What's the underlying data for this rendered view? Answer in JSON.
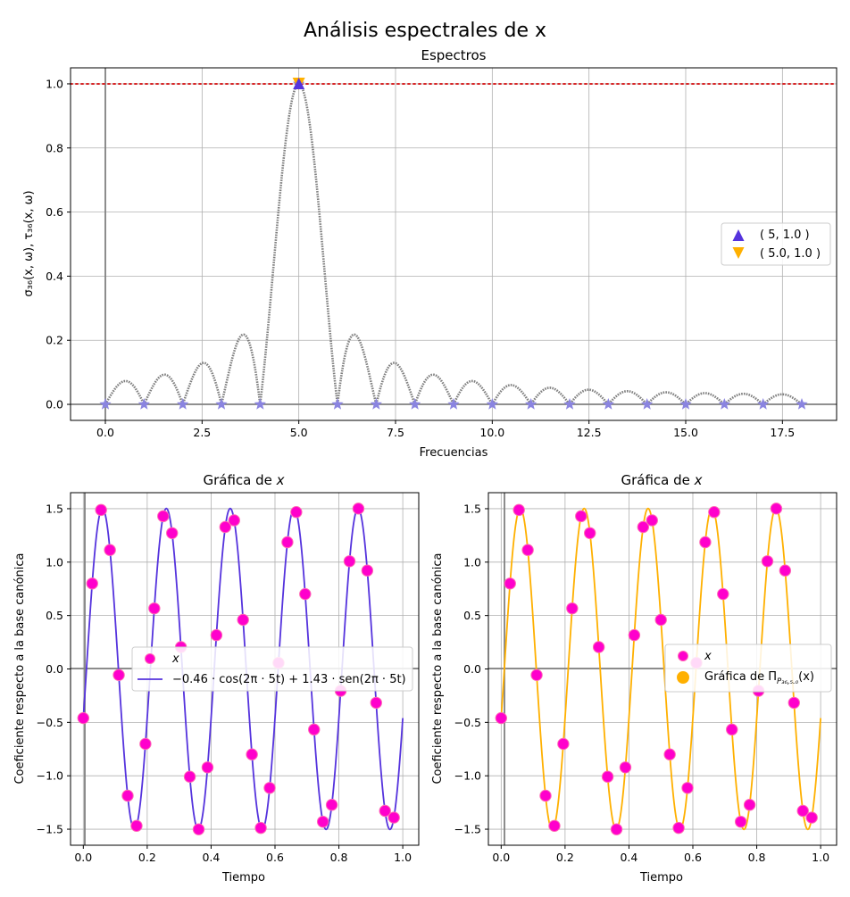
{
  "suptitle": "Análisis espectrales de x",
  "top": {
    "title": "Espectros",
    "xlabel": "Frecuencias",
    "ylabel": "σ₃₆(x, ω), τ₃₆(x, ω)",
    "xlim": [
      -0.9,
      18.9
    ],
    "ylim": [
      -0.05,
      1.05
    ],
    "xticks": [
      0,
      2.5,
      5,
      7.5,
      10,
      12.5,
      15,
      17.5
    ],
    "xtick_labels": [
      "0.0",
      "2.5",
      "5.0",
      "7.5",
      "10.0",
      "12.5",
      "15.0",
      "17.5"
    ],
    "yticks": [
      0,
      0.2,
      0.4,
      0.6,
      0.8,
      1.0
    ],
    "ytick_labels": [
      "0.0",
      "0.2",
      "0.4",
      "0.6",
      "0.8",
      "1.0"
    ],
    "reference_line": {
      "y": 1.0,
      "color": "#d62728"
    },
    "curve_color": "#808080",
    "star_color": "#8a84e0",
    "peak_frequency": 5,
    "samples": 36,
    "star_x": [
      0,
      1,
      2,
      3,
      4,
      5,
      6,
      7,
      8,
      9,
      10,
      11,
      12,
      13,
      14,
      15,
      16,
      17,
      18
    ],
    "star_y": [
      0,
      0,
      0,
      0,
      0,
      1,
      0,
      0,
      0,
      0,
      0,
      0,
      0,
      0,
      0,
      0,
      0,
      0,
      0
    ],
    "legend": [
      {
        "label": "( 5, 1.0 )",
        "marker": "triangle-up",
        "color": "#5533dd"
      },
      {
        "label": "( 5.0, 1.0 )",
        "marker": "triangle-down",
        "color": "#ffb000"
      }
    ]
  },
  "bottom_left": {
    "title": "Gráfica de x",
    "xlabel": "Tiempo",
    "ylabel": "Coeficiente respecto a la base canónica",
    "line_color": "#5533dd",
    "legend": [
      {
        "label": "x"
      },
      {
        "label": "−0.46 · cos(2π · 5t) + 1.43 · sen(2π · 5t)"
      }
    ]
  },
  "bottom_right": {
    "title": "Gráfica de x",
    "xlabel": "Tiempo",
    "ylabel": "Coeficiente respecto a la base canónica",
    "line_color": "#ffb000",
    "legend": [
      {
        "label": "x"
      },
      {
        "label": "Gráfica de Π",
        "sub": "P₃₆,₅.₀",
        "suffix": "(x)"
      }
    ]
  },
  "bottom_axes": {
    "xlim": [
      -0.04,
      1.05
    ],
    "ylim": [
      -1.65,
      1.65
    ],
    "xticks": [
      0,
      0.2,
      0.4,
      0.6,
      0.8,
      1.0
    ],
    "xtick_labels": [
      "0.0",
      "0.2",
      "0.4",
      "0.6",
      "0.8",
      "1.0"
    ],
    "yticks": [
      -1.5,
      -1.0,
      -0.5,
      0,
      0.5,
      1.0,
      1.5
    ],
    "ytick_labels": [
      "−1.5",
      "−1.0",
      "−0.5",
      "0.0",
      "0.5",
      "1.0",
      "1.5"
    ]
  },
  "chart_data": [
    {
      "type": "scatter",
      "title": "Espectros",
      "xlabel": "Frecuencias",
      "ylabel": "σ₃₆(x, ω), τ₃₆(x, ω)",
      "series": [
        {
          "x": [
            0,
            1,
            2,
            3,
            4,
            5,
            6,
            7,
            8,
            9,
            10,
            11,
            12,
            13,
            14,
            15,
            16,
            17,
            18
          ],
          "values": [
            0,
            0,
            0,
            0,
            0,
            1,
            0,
            0,
            0,
            0,
            0,
            0,
            0,
            0,
            0,
            0,
            0,
            0,
            0
          ]
        },
        {
          "x": [
            5
          ],
          "values": [
            1.0
          ]
        },
        {
          "x": [
            5.0
          ],
          "values": [
            1.0
          ]
        }
      ],
      "xlim": [
        -0.9,
        18.9
      ],
      "ylim": [
        -0.05,
        1.05
      ],
      "grid": true,
      "legend_position": "right"
    },
    {
      "type": "line",
      "title": "Gráfica de x",
      "xlabel": "Tiempo",
      "ylabel": "Coeficiente respecto a la base canónica",
      "coefficients": {
        "cos": -0.46,
        "sen": 1.43,
        "frequency": 5
      },
      "sample_count": 36,
      "xlim": [
        -0.04,
        1.05
      ],
      "ylim": [
        -1.65,
        1.65
      ],
      "grid": true,
      "legend_position": "center-right"
    },
    {
      "type": "line",
      "title": "Gráfica de x",
      "xlabel": "Tiempo",
      "ylabel": "Coeficiente respecto a la base canónica",
      "coefficients": {
        "cos": -0.46,
        "sen": 1.43,
        "frequency": 5
      },
      "sample_count": 36,
      "xlim": [
        -0.04,
        1.05
      ],
      "ylim": [
        -1.65,
        1.65
      ],
      "grid": true,
      "legend_position": "center-right"
    }
  ]
}
